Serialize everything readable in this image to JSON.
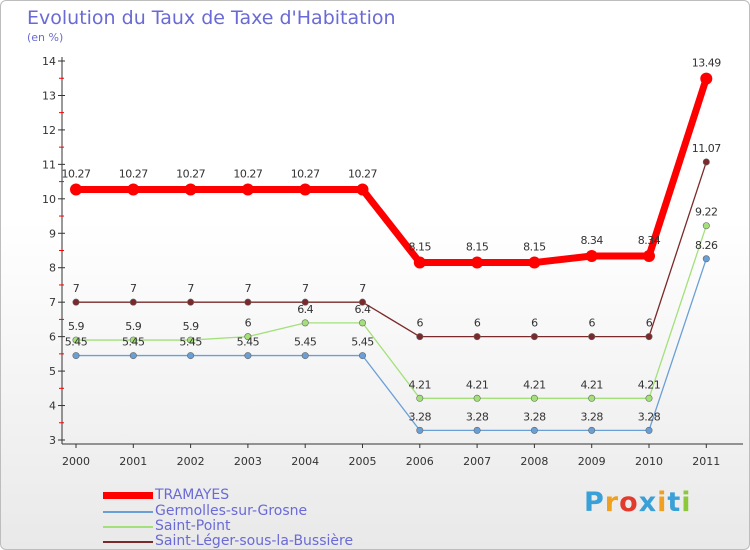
{
  "header": {
    "title": "Evolution du Taux de Taxe d'Habitation",
    "subtitle": "(en %)"
  },
  "chart_data": {
    "type": "line",
    "x": [
      "2000",
      "2001",
      "2002",
      "2003",
      "2004",
      "2005",
      "2006",
      "2007",
      "2008",
      "2009",
      "2010",
      "2011"
    ],
    "ylim": [
      3,
      14
    ],
    "yticks": [
      3,
      4,
      5,
      6,
      7,
      8,
      9,
      10,
      11,
      12,
      13,
      14
    ],
    "grid": false,
    "legend": "bottom-left",
    "series": [
      {
        "name": "TRAMAYES",
        "color": "#ff0000",
        "values": [
          10.27,
          10.27,
          10.27,
          10.27,
          10.27,
          10.27,
          8.15,
          8.15,
          8.15,
          8.34,
          8.34,
          13.49
        ],
        "labels": [
          "10.27",
          "10.27",
          "10.27",
          "10.27",
          "10.27",
          "10.27",
          "8.15",
          "8.15",
          "8.15",
          "8.34",
          "8.34",
          "13.49"
        ]
      },
      {
        "name": "Germolles-sur-Grosne",
        "color": "#6a9fd6",
        "values": [
          5.45,
          5.45,
          5.45,
          5.45,
          5.45,
          5.45,
          3.28,
          3.28,
          3.28,
          3.28,
          3.28,
          8.26
        ],
        "labels": [
          "5.45",
          "5.45",
          "5.45",
          "5.45",
          "5.45",
          "5.45",
          "3.28",
          "3.28",
          "3.28",
          "3.28",
          "3.28",
          "8.26"
        ]
      },
      {
        "name": "Saint-Point",
        "color": "#a3e07a",
        "values": [
          5.9,
          5.9,
          5.9,
          6,
          6.4,
          6.4,
          4.21,
          4.21,
          4.21,
          4.21,
          4.21,
          9.22
        ],
        "labels": [
          "5.9",
          "5.9",
          "5.9",
          "6",
          "6.4",
          "6.4",
          "4.21",
          "4.21",
          "4.21",
          "4.21",
          "4.21",
          "9.22"
        ]
      },
      {
        "name": "Saint-Léger-sous-la-Bussière",
        "color": "#7a2a2a",
        "values": [
          7,
          7,
          7,
          7,
          7,
          7,
          6,
          6,
          6,
          6,
          6,
          11.07
        ],
        "labels": [
          "7",
          "7",
          "7",
          "7",
          "7",
          "7",
          "6",
          "6",
          "6",
          "6",
          "6",
          "11.07"
        ]
      }
    ]
  },
  "logo": {
    "text": "Proxiti",
    "letters": [
      "P",
      "r",
      "o",
      "x",
      "i",
      "t",
      "i"
    ],
    "colors": [
      "#3aa0d8",
      "#f0a020",
      "#e23b2e",
      "#3aa0d8",
      "#f0a020",
      "#3aa0d8",
      "#8cc83c"
    ]
  }
}
